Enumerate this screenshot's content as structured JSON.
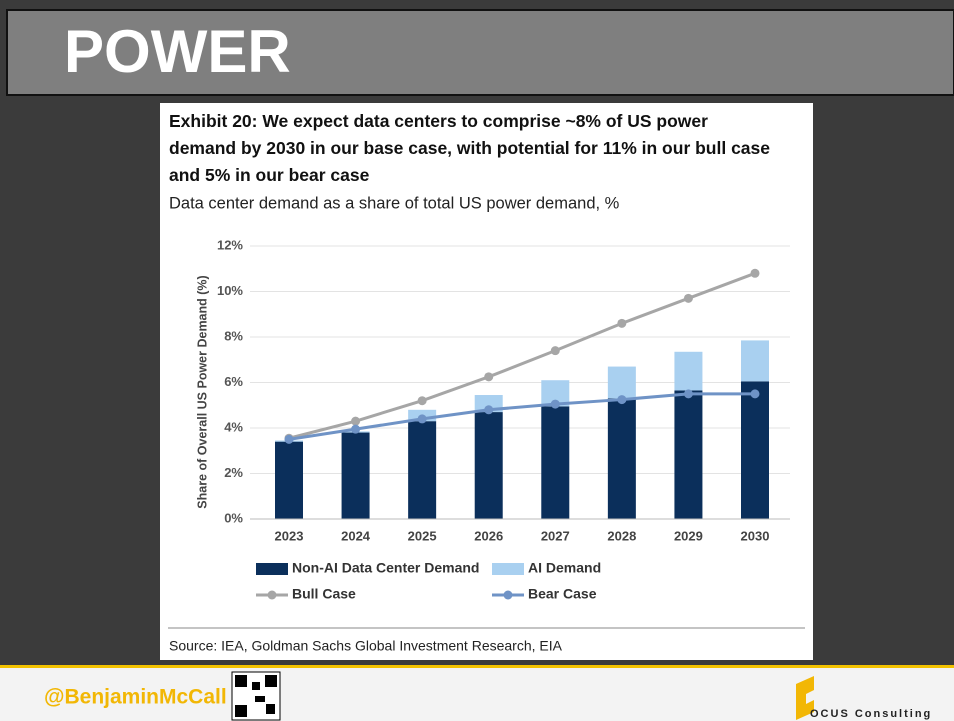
{
  "slide_title": "POWER",
  "footer": {
    "handle": "@BenjaminMcCall",
    "logo_text": "OCUS Consulting"
  },
  "chart_data": {
    "type": "bar",
    "title": "Exhibit 20: We expect data centers to comprise ~8% of US power demand by 2030 in our base case, with potential for 11% in our bull case and 5% in our bear case",
    "subtitle": "Data center demand as a share of total US power demand, %",
    "y_label": "Share of Overall US Power Demand (%)",
    "source": "Source: IEA, Goldman Sachs Global Investment Research, EIA",
    "categories": [
      "2023",
      "2024",
      "2025",
      "2026",
      "2027",
      "2028",
      "2029",
      "2030"
    ],
    "series": [
      {
        "name": "Non-AI Data Center Demand",
        "type": "bar",
        "color": "#0b2f5b",
        "values": [
          3.4,
          3.8,
          4.3,
          4.7,
          4.95,
          5.3,
          5.65,
          6.05
        ]
      },
      {
        "name": "AI Demand",
        "type": "bar",
        "color": "#a9d0f0",
        "values": [
          0.05,
          0.05,
          0.5,
          0.75,
          1.15,
          1.4,
          1.7,
          1.8
        ]
      },
      {
        "name": "Bull Case",
        "type": "line",
        "color": "#a6a6a6",
        "values": [
          3.55,
          4.3,
          5.2,
          6.25,
          7.4,
          8.6,
          9.7,
          10.8
        ]
      },
      {
        "name": "Bear Case",
        "type": "line",
        "color": "#6f93c6",
        "values": [
          3.5,
          3.95,
          4.4,
          4.8,
          5.05,
          5.25,
          5.5,
          5.5
        ]
      }
    ],
    "ylim": [
      0,
      12
    ],
    "yticks": [
      {
        "value": 0,
        "label": "0%"
      },
      {
        "value": 2,
        "label": "2%"
      },
      {
        "value": 4,
        "label": "4%"
      },
      {
        "value": 6,
        "label": "6%"
      },
      {
        "value": 8,
        "label": "8%"
      },
      {
        "value": 10,
        "label": "10%"
      },
      {
        "value": 12,
        "label": "12%"
      }
    ],
    "grid": true
  }
}
